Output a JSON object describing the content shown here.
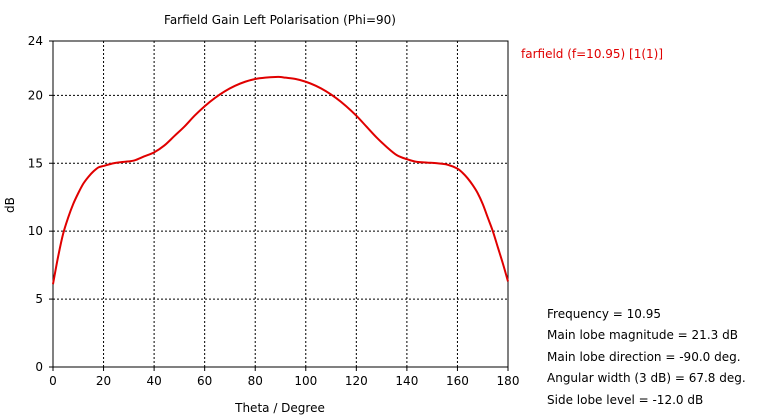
{
  "chart_data": {
    "type": "line",
    "title": "Farfield Gain Left Polarisation (Phi=90)",
    "xlabel": "Theta / Degree",
    "ylabel": "dB",
    "xlim": [
      0,
      180
    ],
    "ylim": [
      0,
      24
    ],
    "xticks": [
      0,
      20,
      40,
      60,
      80,
      100,
      120,
      140,
      160,
      180
    ],
    "yticks": [
      0,
      5,
      10,
      15,
      20,
      24
    ],
    "grid": true,
    "legend_position": "top-right",
    "series": [
      {
        "name": "farfield (f=10.95) [1(1)]",
        "color": "#e00000",
        "x": [
          0,
          2,
          4,
          6,
          8,
          10,
          12,
          14,
          16,
          18,
          20,
          24,
          28,
          32,
          36,
          40,
          44,
          48,
          52,
          56,
          60,
          64,
          68,
          72,
          76,
          80,
          84,
          88,
          90,
          92,
          96,
          100,
          104,
          108,
          112,
          116,
          120,
          124,
          128,
          132,
          136,
          140,
          144,
          148,
          152,
          156,
          160,
          162,
          164,
          166,
          168,
          170,
          172,
          174,
          176,
          178,
          180
        ],
        "y": [
          6.1,
          8.1,
          9.8,
          11.0,
          12.0,
          12.8,
          13.5,
          14.0,
          14.4,
          14.7,
          14.8,
          15.0,
          15.1,
          15.2,
          15.5,
          15.8,
          16.3,
          17.0,
          17.7,
          18.5,
          19.2,
          19.8,
          20.3,
          20.7,
          21.0,
          21.2,
          21.3,
          21.35,
          21.35,
          21.3,
          21.2,
          21.0,
          20.7,
          20.3,
          19.8,
          19.2,
          18.5,
          17.7,
          16.9,
          16.2,
          15.6,
          15.3,
          15.1,
          15.05,
          15.0,
          14.9,
          14.6,
          14.3,
          13.9,
          13.4,
          12.8,
          12.0,
          11.0,
          10.0,
          8.8,
          7.6,
          6.3
        ]
      }
    ]
  },
  "info": {
    "frequency": "Frequency = 10.95",
    "main_lobe_magnitude": "Main lobe magnitude =  21.3 dB",
    "main_lobe_direction": "Main lobe direction = -90.0 deg.",
    "angular_width": "Angular width (3 dB) =  67.8 deg.",
    "side_lobe_level": "Side lobe level = -12.0 dB"
  }
}
